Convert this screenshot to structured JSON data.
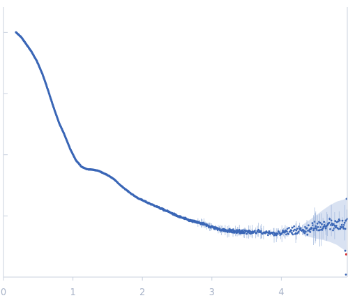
{
  "chart_data": {
    "type": "scatter",
    "title": "",
    "xlabel": "",
    "ylabel": "",
    "xlim": [
      0,
      4.95
    ],
    "x_ticks": [
      {
        "value": 0,
        "label": "0"
      },
      {
        "value": 1,
        "label": "1"
      },
      {
        "value": 2,
        "label": "2"
      },
      {
        "value": 3,
        "label": "3"
      },
      {
        "value": 4,
        "label": "4"
      }
    ],
    "y_scale": "log",
    "y_ticks_unlabeled": [
      1,
      0.1,
      0.01,
      0.001
    ],
    "ylim": [
      0.0001,
      2.6
    ],
    "grid": false,
    "legend": "none",
    "colors": {
      "points": "#3a66b6",
      "error_band": "#b9cbe8",
      "outlier": "#d62728",
      "axis": "#c8d0de",
      "tick_labels": "#a8b3c8"
    },
    "series": [
      {
        "x": [
          0.18,
          0.25,
          0.32,
          0.4,
          0.48,
          0.56,
          0.64,
          0.72,
          0.8,
          0.88,
          0.96,
          1.04,
          1.12,
          1.2,
          1.28,
          1.36,
          1.44,
          1.52,
          1.6,
          1.68,
          1.76,
          1.84,
          1.92,
          2.0,
          2.1,
          2.2,
          2.3,
          2.4,
          2.5,
          2.6,
          2.7,
          2.8,
          2.9,
          3.0,
          3.1,
          3.2,
          3.3,
          3.4,
          3.5,
          3.6,
          3.7,
          3.8,
          3.9,
          4.0,
          4.1,
          4.2,
          4.3,
          4.4,
          4.5,
          4.6,
          4.7,
          4.8,
          4.9
        ],
        "y": [
          1.0,
          0.85,
          0.66,
          0.49,
          0.34,
          0.21,
          0.115,
          0.06,
          0.033,
          0.021,
          0.0125,
          0.0082,
          0.0064,
          0.0058,
          0.0057,
          0.0055,
          0.005,
          0.0045,
          0.0039,
          0.0032,
          0.0027,
          0.0023,
          0.002,
          0.0018,
          0.0016,
          0.00143,
          0.00127,
          0.00114,
          0.001,
          0.00091,
          0.00083,
          0.00078,
          0.00072,
          0.00066,
          0.00061,
          0.00058,
          0.00056,
          0.00055,
          0.00054,
          0.00054,
          0.00055,
          0.00054,
          0.00052,
          0.00053,
          0.00055,
          0.00057,
          0.00059,
          0.00062,
          0.00066,
          0.00071,
          0.00075,
          0.00076,
          0.00072
        ]
      }
    ]
  }
}
